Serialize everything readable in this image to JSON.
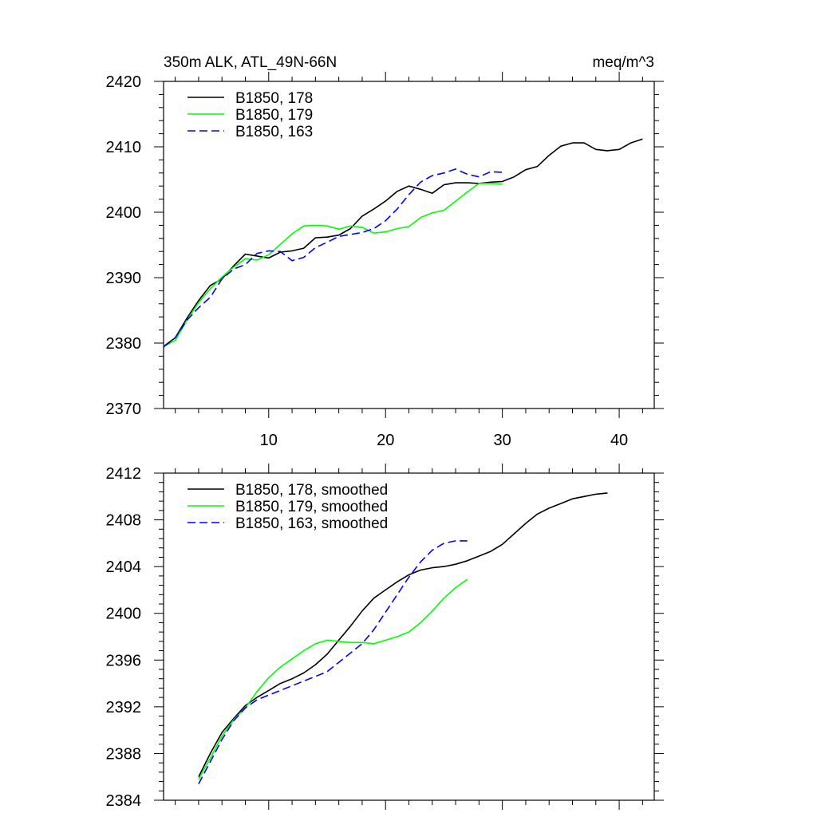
{
  "figure": {
    "title_left": "350m ALK, ATL_49N-66N",
    "title_right": "meq/m^3"
  },
  "chart_data": [
    {
      "type": "line",
      "xlim": [
        1,
        43
      ],
      "ylim": [
        2370,
        2420
      ],
      "yticks": [
        2370,
        2380,
        2390,
        2400,
        2410,
        2420
      ],
      "xticks": [
        10,
        20,
        30,
        40
      ],
      "show_xtick_labels": true,
      "grid": false,
      "legend": "top-left",
      "series": [
        {
          "name": "B1850, 178",
          "color": "#000000",
          "dash": false,
          "x": [
            1,
            2,
            3,
            4,
            5,
            6,
            7,
            8,
            9,
            10,
            11,
            12,
            13,
            14,
            15,
            16,
            17,
            18,
            19,
            20,
            21,
            22,
            23,
            24,
            25,
            26,
            27,
            28,
            29,
            30,
            31,
            32,
            33,
            34,
            35,
            36,
            37,
            38,
            39,
            40,
            41,
            42
          ],
          "y": [
            2379.5,
            2380.8,
            2383.8,
            2386.5,
            2388.8,
            2389.8,
            2391.8,
            2393.6,
            2393.3,
            2393.0,
            2393.9,
            2394.1,
            2394.5,
            2396.1,
            2396.2,
            2396.5,
            2397.5,
            2399.4,
            2400.5,
            2401.7,
            2403.2,
            2404.0,
            2403.5,
            2402.9,
            2404.2,
            2404.5,
            2404.5,
            2404.4,
            2404.6,
            2404.7,
            2405.4,
            2406.5,
            2407.0,
            2408.7,
            2410.1,
            2410.6,
            2410.6,
            2409.6,
            2409.4,
            2409.6,
            2410.6,
            2411.2
          ]
        },
        {
          "name": "B1850, 179",
          "color": "#00ff00",
          "dash": false,
          "x": [
            1,
            2,
            3,
            4,
            5,
            6,
            7,
            8,
            9,
            10,
            11,
            12,
            13,
            14,
            15,
            16,
            17,
            18,
            19,
            20,
            21,
            22,
            23,
            24,
            25,
            26,
            27,
            28,
            29,
            30
          ],
          "y": [
            2379.5,
            2380.4,
            2383.5,
            2386.2,
            2388.3,
            2390.1,
            2391.6,
            2392.9,
            2392.7,
            2393.5,
            2395.1,
            2396.7,
            2397.9,
            2398.0,
            2397.9,
            2397.4,
            2397.9,
            2397.7,
            2396.8,
            2397.0,
            2397.5,
            2397.8,
            2399.2,
            2399.9,
            2400.3,
            2401.7,
            2403.1,
            2404.4,
            2404.4,
            2404.3
          ]
        },
        {
          "name": "B1850, 163",
          "color": "#0000ff",
          "dash": true,
          "x": [
            1,
            2,
            3,
            4,
            5,
            6,
            7,
            8,
            9,
            10,
            11,
            12,
            13,
            14,
            15,
            16,
            17,
            18,
            19,
            20,
            21,
            22,
            23,
            24,
            25,
            26,
            27,
            28,
            29,
            30
          ],
          "y": [
            2379.4,
            2380.8,
            2383.5,
            2385.4,
            2387.0,
            2389.8,
            2391.3,
            2392.0,
            2393.7,
            2394.1,
            2394.0,
            2392.6,
            2393.1,
            2394.6,
            2395.4,
            2396.3,
            2396.6,
            2396.9,
            2397.5,
            2398.7,
            2400.5,
            2402.7,
            2404.6,
            2405.6,
            2406.0,
            2406.6,
            2405.8,
            2405.4,
            2406.2,
            2406.1
          ]
        }
      ]
    },
    {
      "type": "line",
      "xlim": [
        1,
        43
      ],
      "ylim": [
        2384,
        2412
      ],
      "yticks": [
        2384,
        2388,
        2392,
        2396,
        2400,
        2404,
        2408,
        2412
      ],
      "xticks": [
        10,
        20,
        30,
        40
      ],
      "show_xtick_labels": false,
      "grid": false,
      "legend": "top-left",
      "series": [
        {
          "name": "B1850, 178, smoothed",
          "color": "#000000",
          "dash": false,
          "x": [
            4,
            5,
            6,
            7,
            8,
            9,
            10,
            11,
            12,
            13,
            14,
            15,
            16,
            17,
            18,
            19,
            20,
            21,
            22,
            23,
            24,
            25,
            26,
            27,
            28,
            29,
            30,
            31,
            32,
            33,
            34,
            35,
            36,
            37,
            38,
            39
          ],
          "y": [
            2386.0,
            2388.0,
            2389.8,
            2391.0,
            2392.1,
            2392.8,
            2393.4,
            2394.0,
            2394.4,
            2394.9,
            2395.6,
            2396.5,
            2397.7,
            2398.9,
            2400.2,
            2401.3,
            2402.0,
            2402.7,
            2403.3,
            2403.7,
            2403.9,
            2404.0,
            2404.2,
            2404.5,
            2404.9,
            2405.3,
            2405.9,
            2406.8,
            2407.7,
            2408.5,
            2409.0,
            2409.4,
            2409.8,
            2410.0,
            2410.2,
            2410.3
          ]
        },
        {
          "name": "B1850, 179, smoothed",
          "color": "#00ff00",
          "dash": false,
          "x": [
            4,
            5,
            6,
            7,
            8,
            9,
            10,
            11,
            12,
            13,
            14,
            15,
            16,
            17,
            18,
            19,
            20,
            21,
            22,
            23,
            24,
            25,
            26,
            27
          ],
          "y": [
            2385.8,
            2387.6,
            2389.5,
            2390.9,
            2391.9,
            2393.3,
            2394.5,
            2395.4,
            2396.1,
            2396.8,
            2397.4,
            2397.7,
            2397.6,
            2397.5,
            2397.5,
            2397.4,
            2397.7,
            2398.0,
            2398.4,
            2399.2,
            2400.2,
            2401.3,
            2402.2,
            2402.9
          ]
        },
        {
          "name": "B1850, 163, smoothed",
          "color": "#0000ff",
          "dash": true,
          "x": [
            4,
            5,
            6,
            7,
            8,
            9,
            10,
            11,
            12,
            13,
            14,
            15,
            16,
            17,
            18,
            19,
            20,
            21,
            22,
            23,
            24,
            25,
            26,
            27
          ],
          "y": [
            2385.4,
            2387.3,
            2389.2,
            2390.8,
            2391.9,
            2392.6,
            2393.0,
            2393.4,
            2393.8,
            2394.2,
            2394.6,
            2395.0,
            2395.8,
            2396.6,
            2397.4,
            2398.6,
            2400.1,
            2401.6,
            2403.1,
            2404.4,
            2405.4,
            2406.0,
            2406.2,
            2406.2
          ]
        }
      ]
    }
  ]
}
